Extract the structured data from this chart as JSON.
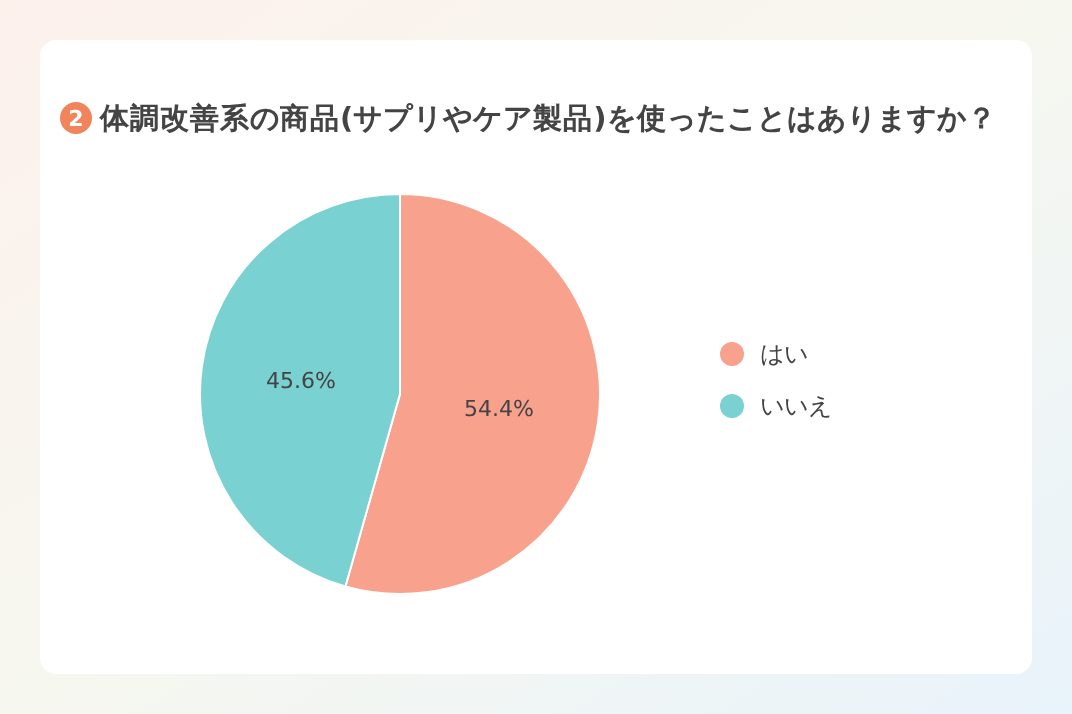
{
  "chart_data": {
    "type": "pie",
    "title": "体調改善系の商品(サプリやケア製品)を使ったことはありますか？",
    "annotations": [
      "2"
    ],
    "categories": [
      "はい",
      "いいえ"
    ],
    "values": [
      54.4,
      45.6
    ],
    "colors": [
      "#f8a18c",
      "#79d1d1"
    ],
    "value_labels": [
      "54.4%",
      "45.6%"
    ],
    "legend": "right"
  }
}
